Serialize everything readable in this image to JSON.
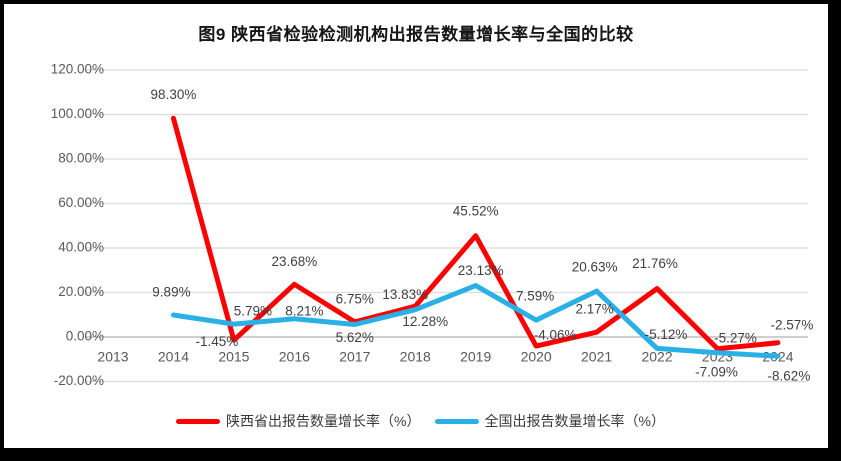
{
  "chart_data": {
    "type": "line",
    "title": "图9  陕西省检验检测机构出报告数量增长率与全国的比较",
    "categories": [
      "2013",
      "2014",
      "2015",
      "2016",
      "2017",
      "2018",
      "2019",
      "2020",
      "2021",
      "2022",
      "2023",
      "2024"
    ],
    "series": [
      {
        "name": "陕西省出报告数量增长率（%）",
        "color": "#fe0000",
        "values": [
          null,
          98.3,
          -1.45,
          23.68,
          6.75,
          13.83,
          45.52,
          -4.06,
          2.17,
          21.76,
          -5.27,
          -2.57
        ]
      },
      {
        "name": "全国出报告数量增长率（%）",
        "color": "#29b0e6",
        "values": [
          null,
          9.89,
          5.79,
          8.21,
          5.62,
          12.28,
          23.13,
          7.59,
          20.63,
          -5.12,
          -7.09,
          -8.62
        ]
      }
    ],
    "y_axis": {
      "min": -20,
      "max": 120,
      "step": 20,
      "tick_labels": [
        "120.00%",
        "100.00%",
        "80.00%",
        "60.00%",
        "40.00%",
        "20.00%",
        "0.00%",
        "-20.00%"
      ]
    },
    "data_labels": true,
    "grid": true,
    "legend_position": "bottom",
    "colors": {
      "gridline": "#dcdcdc",
      "zero_axis": "#bfbfbf",
      "axis_text": "#595959",
      "data_label_text": "#3f3f3f",
      "frame": "#000000",
      "background": "#ffffff"
    }
  }
}
